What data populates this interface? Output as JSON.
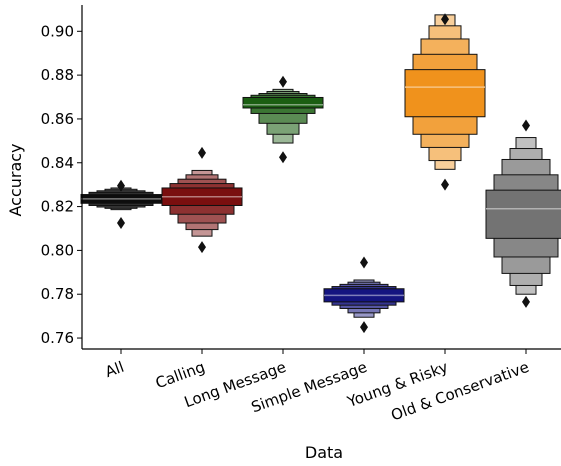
{
  "chart_data": {
    "type": "boxen",
    "xlabel": "Data",
    "ylabel": "Accuracy",
    "ylim": [
      0.755,
      0.912
    ],
    "yticks": [
      0.76,
      0.78,
      0.8,
      0.82,
      0.84,
      0.86,
      0.88,
      0.9
    ],
    "ytick_labels": [
      "0.76",
      "0.78",
      "0.80",
      "0.82",
      "0.84",
      "0.86",
      "0.88",
      "0.90"
    ],
    "categories": [
      "All",
      "Calling",
      "Long Message",
      "Simple Message",
      "Young & Risky",
      "Old & Conservative"
    ],
    "series": [
      {
        "category": "All",
        "color": "#0d0d0d",
        "median": 0.8235,
        "levels": [
          [
            0.8215,
            0.8255
          ],
          [
            0.8205,
            0.8265
          ],
          [
            0.8198,
            0.8272
          ],
          [
            0.8192,
            0.8279
          ],
          [
            0.8186,
            0.8285
          ]
        ],
        "outliers": [
          0.8125,
          0.8295
        ]
      },
      {
        "category": "Calling",
        "color": "#7a0f0f",
        "median": 0.8245,
        "levels": [
          [
            0.8205,
            0.8285
          ],
          [
            0.8165,
            0.8305
          ],
          [
            0.8125,
            0.8325
          ],
          [
            0.8095,
            0.8345
          ],
          [
            0.8065,
            0.8365
          ]
        ],
        "outliers": [
          0.8015,
          0.8445
        ]
      },
      {
        "category": "Long Message",
        "color": "#1b5e12",
        "median": 0.8665,
        "levels": [
          [
            0.865,
            0.8698
          ],
          [
            0.8625,
            0.8708
          ],
          [
            0.858,
            0.8716
          ],
          [
            0.853,
            0.8725
          ],
          [
            0.849,
            0.8735
          ]
        ],
        "outliers": [
          0.8425,
          0.877
        ]
      },
      {
        "category": "Simple Message",
        "color": "#141480",
        "median": 0.7795,
        "levels": [
          [
            0.7765,
            0.7825
          ],
          [
            0.775,
            0.7835
          ],
          [
            0.7735,
            0.7845
          ],
          [
            0.7715,
            0.7855
          ],
          [
            0.7695,
            0.7865
          ]
        ],
        "outliers": [
          0.765,
          0.7945
        ]
      },
      {
        "category": "Young & Risky",
        "color": "#f0921c",
        "median": 0.8745,
        "levels": [
          [
            0.861,
            0.8825
          ],
          [
            0.853,
            0.8895
          ],
          [
            0.847,
            0.8965
          ],
          [
            0.841,
            0.9025
          ],
          [
            0.837,
            0.9075
          ]
        ],
        "outliers": [
          0.83,
          0.9055
        ]
      },
      {
        "category": "Old & Conservative",
        "color": "#737373",
        "median": 0.819,
        "levels": [
          [
            0.8055,
            0.8275
          ],
          [
            0.797,
            0.8345
          ],
          [
            0.7895,
            0.8415
          ],
          [
            0.784,
            0.8465
          ],
          [
            0.78,
            0.8515
          ]
        ],
        "outliers": [
          0.7765,
          0.857
        ]
      }
    ]
  }
}
